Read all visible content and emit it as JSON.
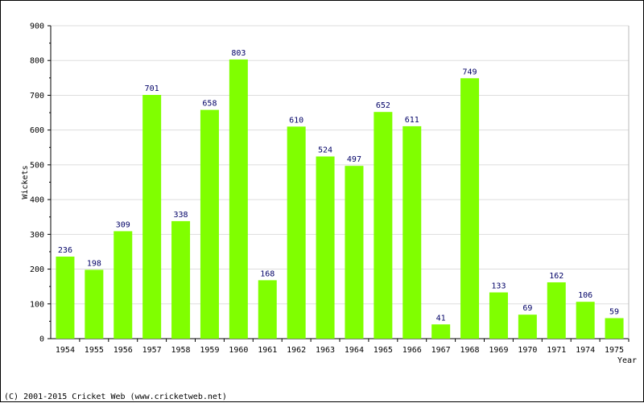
{
  "chart_data": {
    "type": "bar",
    "categories": [
      "1954",
      "1955",
      "1956",
      "1957",
      "1958",
      "1959",
      "1960",
      "1961",
      "1962",
      "1963",
      "1964",
      "1965",
      "1966",
      "1967",
      "1968",
      "1969",
      "1970",
      "1971",
      "1974",
      "1975"
    ],
    "values": [
      236,
      198,
      309,
      701,
      338,
      658,
      803,
      168,
      610,
      524,
      497,
      652,
      611,
      41,
      749,
      133,
      69,
      162,
      106,
      59
    ],
    "xlabel": "Year",
    "ylabel": "Wickets",
    "ylim": [
      0,
      900
    ],
    "yticks": [
      0,
      100,
      200,
      300,
      400,
      500,
      600,
      700,
      800,
      900
    ],
    "grid": true,
    "legend": "none",
    "bar_color": "#80ff00",
    "value_label_color": "#000066"
  },
  "footer": {
    "copyright": "(C) 2001-2015 Cricket Web (www.cricketweb.net)"
  }
}
